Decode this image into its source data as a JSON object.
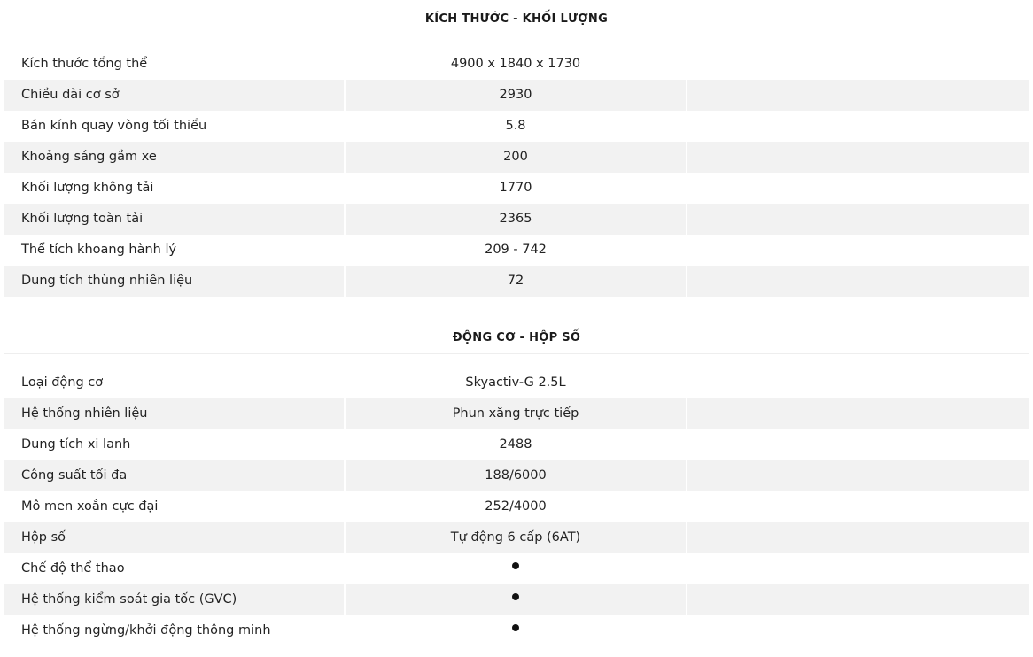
{
  "sections": [
    {
      "title": "KÍCH THƯỚC - KHỐI LƯỢNG",
      "rows": [
        {
          "label": "Kích thước tổng thể",
          "value": "4900 x 1840 x 1730"
        },
        {
          "label": "Chiều dài cơ sở",
          "value": "2930"
        },
        {
          "label": "Bán kính quay vòng tối thiểu",
          "value": "5.8"
        },
        {
          "label": "Khoảng sáng gầm xe",
          "value": "200"
        },
        {
          "label": "Khối lượng không tải",
          "value": "1770"
        },
        {
          "label": "Khối lượng toàn tải",
          "value": "2365"
        },
        {
          "label": "Thể tích khoang hành lý",
          "value": "209 - 742"
        },
        {
          "label": "Dung tích thùng nhiên liệu",
          "value": "72"
        }
      ]
    },
    {
      "title": "ĐỘNG CƠ - HỘP SỐ",
      "rows": [
        {
          "label": "Loại động cơ",
          "value": "Skyactiv-G 2.5L"
        },
        {
          "label": "Hệ thống nhiên liệu",
          "value": "Phun xăng trực tiếp"
        },
        {
          "label": "Dung tích xi lanh",
          "value": "2488"
        },
        {
          "label": "Công suất tối đa",
          "value": "188/6000"
        },
        {
          "label": "Mô men xoắn cực đại",
          "value": "252/4000"
        },
        {
          "label": "Hộp số",
          "value": "Tự động 6 cấp (6AT)"
        },
        {
          "label": "Chế độ thể thao",
          "value": "",
          "dot": true
        },
        {
          "label": "Hệ thống kiểm soát gia tốc (GVC)",
          "value": "",
          "dot": true
        },
        {
          "label": "Hệ thống ngừng/khởi động thông minh",
          "value": "",
          "dot": true
        }
      ]
    }
  ],
  "icons": {
    "available": "bullet-dot-icon"
  },
  "colors": {
    "alt_row": "#f2f2f2",
    "text": "#222222"
  }
}
